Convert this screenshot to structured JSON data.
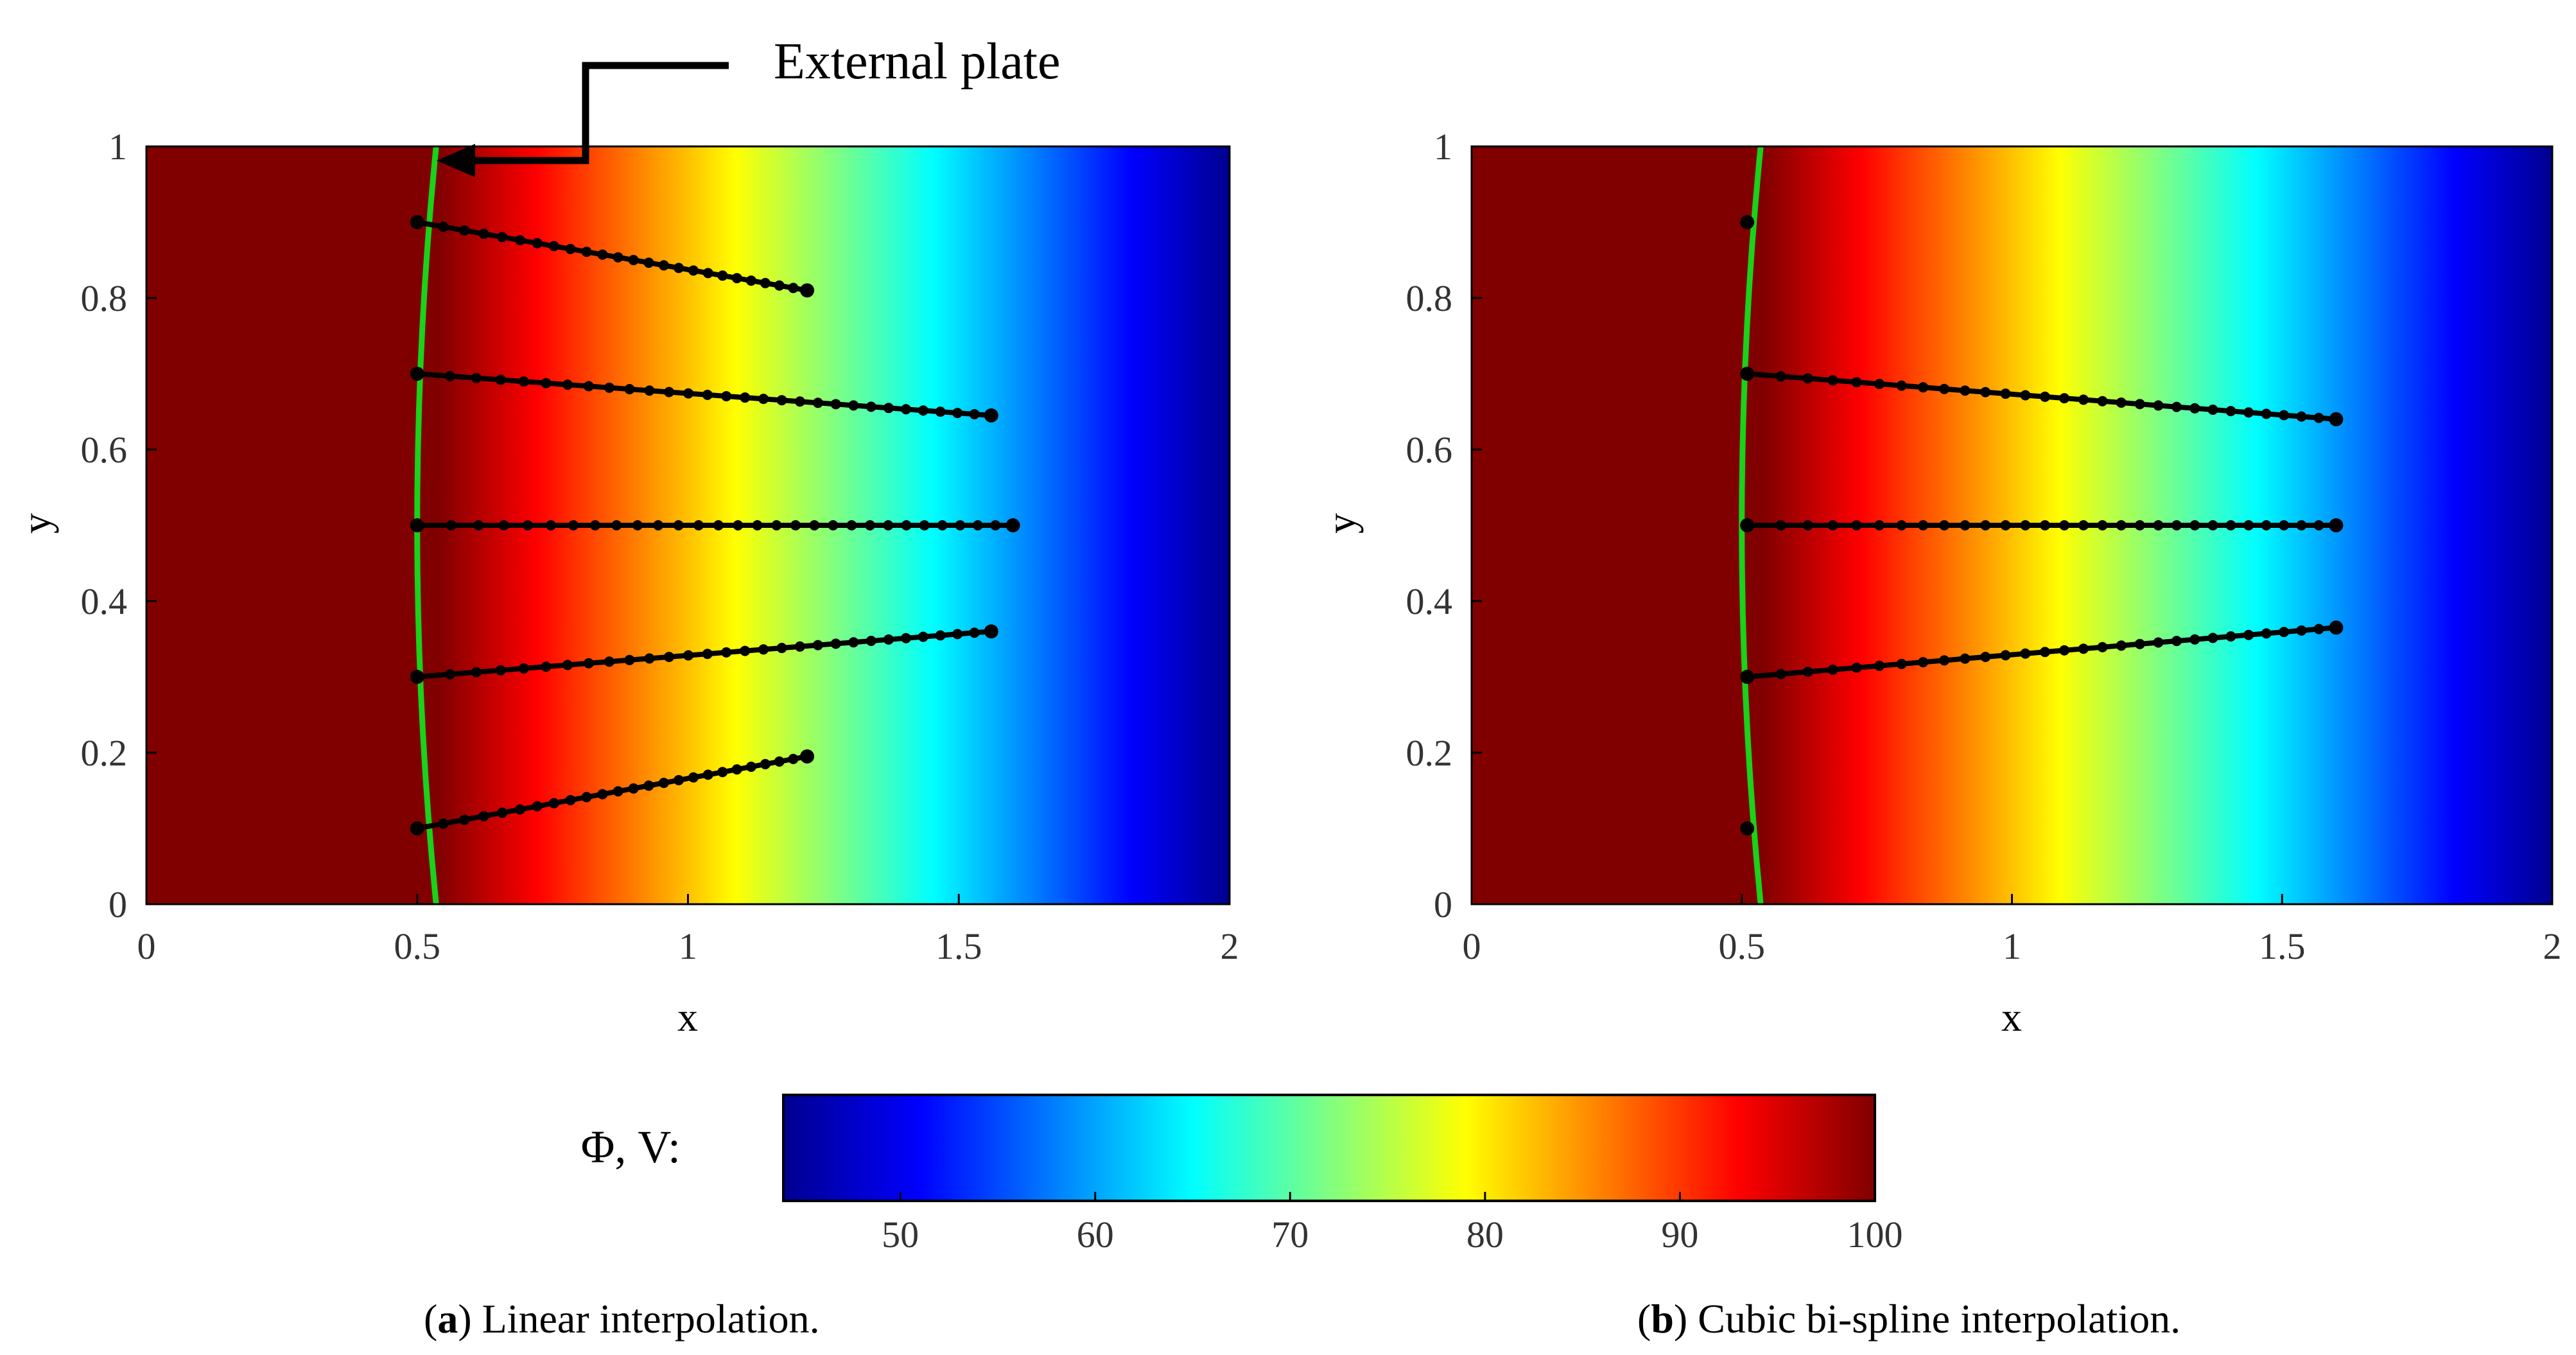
{
  "annotation": {
    "label": "External plate"
  },
  "colorbar": {
    "label": "Φ, V:",
    "min": 44,
    "max": 100,
    "ticks": [
      "50",
      "60",
      "70",
      "80",
      "90",
      "100"
    ],
    "tick_values": [
      50,
      60,
      70,
      80,
      90,
      100
    ]
  },
  "colors": {
    "plate_line": "#19d219",
    "probe_line": "#000000",
    "colormap": [
      "#00008f",
      "#0000ff",
      "#0080ff",
      "#00ffff",
      "#80ff80",
      "#ffff00",
      "#ff8000",
      "#ff0000",
      "#800000"
    ]
  },
  "chart_data": [
    {
      "type": "heatmap",
      "title": "",
      "xlabel": "x",
      "ylabel": "y",
      "xlim": [
        0,
        2
      ],
      "ylim": [
        0,
        1
      ],
      "xticks": [
        "0",
        "0.5",
        "1",
        "1.5",
        "2"
      ],
      "xtick_values": [
        0,
        0.5,
        1,
        1.5,
        2
      ],
      "yticks": [
        "0",
        "0.2",
        "0.4",
        "0.6",
        "0.8",
        "1"
      ],
      "ytick_values": [
        0,
        0.2,
        0.4,
        0.6,
        0.8,
        1
      ],
      "field": {
        "name": "Φ, V",
        "plate_x_range": [
          0.5,
          0.54
        ],
        "max": 100,
        "min": 44
      },
      "plate_curve": {
        "x_center": 0.5,
        "x_edge": 0.535
      },
      "caption_letter": "a",
      "caption_text": ") Linear interpolation.",
      "probes": [
        {
          "start": [
            0.5,
            0.9
          ],
          "end": [
            1.22,
            0.81
          ],
          "points": 25
        },
        {
          "start": [
            0.5,
            0.7
          ],
          "end": [
            1.56,
            0.645
          ],
          "points": 30
        },
        {
          "start": [
            0.5,
            0.5
          ],
          "end": [
            1.6,
            0.5
          ],
          "points": 30
        },
        {
          "start": [
            0.5,
            0.3
          ],
          "end": [
            1.56,
            0.36
          ],
          "points": 30
        },
        {
          "start": [
            0.5,
            0.1
          ],
          "end": [
            1.22,
            0.195
          ],
          "points": 25
        }
      ]
    },
    {
      "type": "heatmap",
      "title": "",
      "xlabel": "x",
      "ylabel": "y",
      "xlim": [
        0,
        2
      ],
      "ylim": [
        0,
        1
      ],
      "xticks": [
        "0",
        "0.5",
        "1",
        "1.5",
        "2"
      ],
      "xtick_values": [
        0,
        0.5,
        1,
        1.5,
        2
      ],
      "yticks": [
        "0",
        "0.2",
        "0.4",
        "0.6",
        "0.8",
        "1"
      ],
      "ytick_values": [
        0,
        0.2,
        0.4,
        0.6,
        0.8,
        1
      ],
      "field": {
        "name": "Φ, V",
        "plate_x_range": [
          0.5,
          0.54
        ],
        "max": 100,
        "min": 44
      },
      "plate_curve": {
        "x_center": 0.5,
        "x_edge": 0.535
      },
      "caption_letter": "b",
      "caption_text": ") Cubic bi-spline interpolation.",
      "probes": [
        {
          "start": [
            0.51,
            0.9
          ],
          "end": [
            0.51,
            0.9
          ],
          "points": 1
        },
        {
          "start": [
            0.51,
            0.7
          ],
          "end": [
            1.6,
            0.64
          ],
          "points": 30
        },
        {
          "start": [
            0.51,
            0.5
          ],
          "end": [
            1.6,
            0.5
          ],
          "points": 30
        },
        {
          "start": [
            0.51,
            0.3
          ],
          "end": [
            1.6,
            0.365
          ],
          "points": 30
        },
        {
          "start": [
            0.51,
            0.1
          ],
          "end": [
            0.51,
            0.1
          ],
          "points": 1
        }
      ]
    }
  ]
}
